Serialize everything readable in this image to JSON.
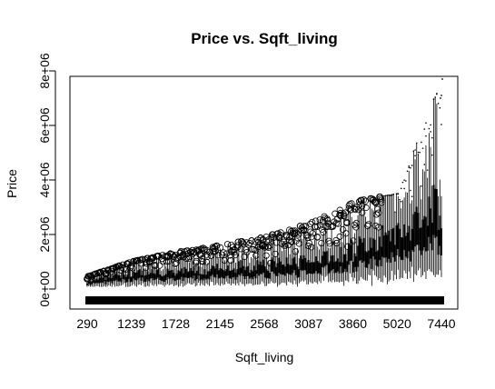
{
  "chart_data": {
    "type": "box",
    "title": "Price vs. Sqft_living",
    "xlabel": "Sqft_living",
    "ylabel": "Price",
    "ylim": [
      0,
      8000000
    ],
    "y_ticks": [
      {
        "value": 0,
        "label": "0e+00"
      },
      {
        "value": 2000000,
        "label": "2e+06"
      },
      {
        "value": 4000000,
        "label": "4e+06"
      },
      {
        "value": 6000000,
        "label": "6e+06"
      },
      {
        "value": 8000000,
        "label": "8e+06"
      }
    ],
    "x_tick_labels": [
      "290",
      "1239",
      "1728",
      "2145",
      "2568",
      "3087",
      "3860",
      "5020",
      "7440"
    ],
    "n_categories": 1038,
    "grid": false,
    "legend": "none",
    "median_trend": [
      {
        "sqft": 290,
        "price": 220000
      },
      {
        "sqft": 1239,
        "price": 420000
      },
      {
        "sqft": 1728,
        "price": 480000
      },
      {
        "sqft": 2145,
        "price": 560000
      },
      {
        "sqft": 2568,
        "price": 640000
      },
      {
        "sqft": 3087,
        "price": 780000
      },
      {
        "sqft": 3860,
        "price": 1050000
      },
      {
        "sqft": 5020,
        "price": 1500000
      },
      {
        "sqft": 7440,
        "price": 2200000
      }
    ],
    "outlier_upper_trend": [
      {
        "sqft": 290,
        "price": 450000
      },
      {
        "sqft": 1239,
        "price": 1000000
      },
      {
        "sqft": 1728,
        "price": 1350000
      },
      {
        "sqft": 2145,
        "price": 1600000
      },
      {
        "sqft": 2568,
        "price": 1900000
      },
      {
        "sqft": 3087,
        "price": 2400000
      },
      {
        "sqft": 3860,
        "price": 3200000
      },
      {
        "sqft": 5020,
        "price": 3500000
      },
      {
        "sqft": 7440,
        "price": 7700000
      }
    ]
  }
}
